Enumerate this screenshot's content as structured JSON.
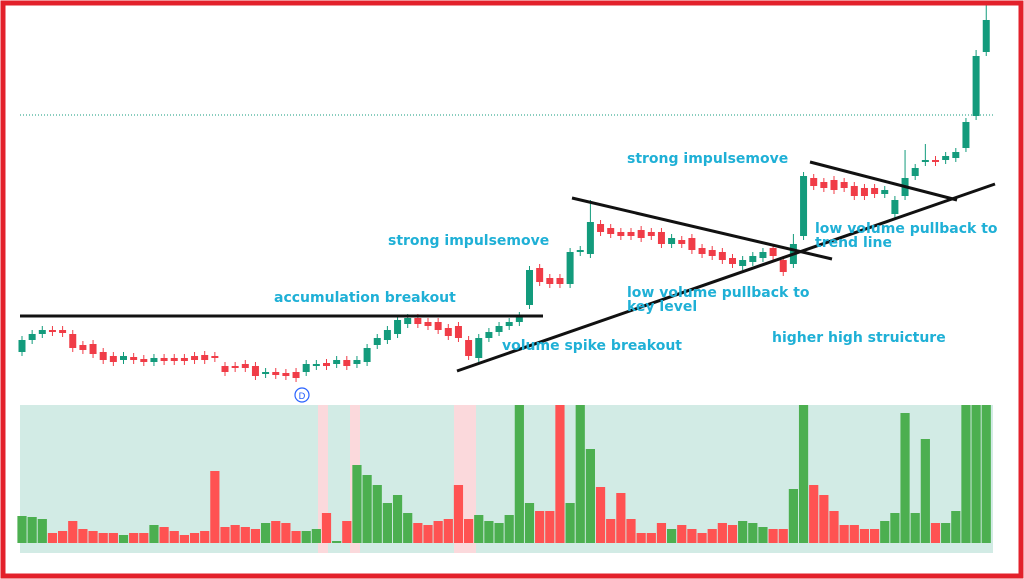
{
  "chart_data": {
    "type": "candlestick",
    "open": [
      48,
      60,
      66,
      70,
      70,
      66,
      55,
      56,
      48,
      44,
      40,
      43,
      41,
      38,
      42,
      42,
      42,
      44,
      45,
      44,
      34,
      34,
      36,
      34,
      26,
      28,
      27,
      28,
      28,
      34,
      37,
      36,
      40,
      36,
      38,
      55,
      60,
      66,
      76,
      82,
      78,
      78,
      72,
      74,
      60,
      42,
      62,
      68,
      74,
      78,
      95,
      132,
      122,
      122,
      116,
      148,
      146,
      176,
      172,
      168,
      168,
      170,
      168,
      168,
      156,
      160,
      162,
      152,
      150,
      148,
      142,
      134,
      138,
      142,
      152,
      140,
      136,
      164,
      222,
      218,
      220,
      218,
      214,
      212,
      212,
      206,
      186,
      204,
      224,
      238,
      240,
      240,
      242,
      252,
      284,
      348
    ],
    "high": [
      64,
      70,
      74,
      74,
      74,
      70,
      59,
      60,
      52,
      48,
      48,
      47,
      45,
      46,
      46,
      46,
      46,
      48,
      49,
      48,
      38,
      38,
      40,
      38,
      32,
      32,
      31,
      32,
      40,
      40,
      41,
      44,
      44,
      44,
      56,
      66,
      74,
      84,
      86,
      86,
      82,
      82,
      76,
      78,
      64,
      66,
      72,
      78,
      82,
      88,
      134,
      136,
      126,
      126,
      152,
      154,
      200,
      180,
      176,
      172,
      172,
      174,
      172,
      172,
      166,
      164,
      166,
      156,
      154,
      152,
      146,
      144,
      148,
      152,
      156,
      144,
      166,
      228,
      226,
      222,
      224,
      222,
      218,
      216,
      216,
      214,
      204,
      250,
      236,
      256,
      244,
      248,
      252,
      282,
      350,
      398
    ],
    "low": [
      44,
      56,
      62,
      64,
      63,
      48,
      46,
      42,
      36,
      34,
      36,
      36,
      34,
      34,
      35,
      35,
      35,
      36,
      36,
      38,
      24,
      28,
      28,
      20,
      22,
      21,
      20,
      18,
      24,
      30,
      30,
      32,
      30,
      32,
      34,
      51,
      56,
      62,
      72,
      72,
      70,
      66,
      60,
      58,
      40,
      38,
      58,
      64,
      70,
      74,
      91,
      114,
      112,
      112,
      112,
      144,
      142,
      164,
      162,
      160,
      160,
      158,
      160,
      152,
      152,
      152,
      146,
      142,
      140,
      136,
      132,
      130,
      134,
      138,
      140,
      124,
      132,
      160,
      210,
      208,
      206,
      208,
      200,
      200,
      202,
      202,
      182,
      200,
      220,
      234,
      234,
      236,
      238,
      248,
      280,
      344
    ],
    "close": [
      60,
      66,
      70,
      68,
      67,
      52,
      50,
      46,
      40,
      38,
      44,
      40,
      38,
      42,
      39,
      39,
      39,
      40,
      40,
      42,
      28,
      32,
      32,
      24,
      28,
      25,
      24,
      22,
      36,
      36,
      34,
      40,
      34,
      40,
      52,
      62,
      70,
      80,
      82,
      76,
      74,
      70,
      64,
      62,
      44,
      62,
      68,
      74,
      78,
      84,
      130,
      118,
      116,
      116,
      148,
      150,
      178,
      168,
      166,
      164,
      164,
      162,
      164,
      156,
      162,
      156,
      150,
      146,
      144,
      140,
      136,
      140,
      144,
      148,
      144,
      128,
      156,
      224,
      214,
      212,
      210,
      212,
      204,
      204,
      206,
      210,
      200,
      222,
      232,
      240,
      238,
      244,
      248,
      278,
      344,
      380
    ],
    "volume": [
      27,
      26,
      24,
      10,
      12,
      22,
      14,
      12,
      10,
      10,
      8,
      10,
      10,
      18,
      16,
      12,
      8,
      10,
      12,
      72,
      16,
      18,
      16,
      14,
      20,
      22,
      20,
      12,
      12,
      14,
      30,
      2,
      22,
      78,
      68,
      58,
      40,
      48,
      30,
      20,
      18,
      22,
      24,
      58,
      24,
      28,
      22,
      20,
      28,
      138,
      40,
      32,
      32,
      138,
      40,
      138,
      94,
      56,
      24,
      50,
      24,
      10,
      10,
      20,
      14,
      18,
      14,
      10,
      14,
      20,
      18,
      22,
      20,
      16,
      14,
      14,
      54,
      138,
      58,
      48,
      32,
      18,
      18,
      14,
      14,
      22,
      30,
      130,
      30,
      104,
      20,
      20,
      32,
      138,
      138,
      138
    ],
    "price_line": 285,
    "ylim": [
      0,
      390
    ],
    "vlim": [
      0,
      138
    ],
    "up_color": "#139b7c",
    "down_color": "#f03c47",
    "vol_up_color": "#4caf50",
    "vol_down_color": "#ff5252",
    "marker": "D",
    "annotations": [
      {
        "lines": [
          "accumulation breakout"
        ]
      },
      {
        "lines": [
          "strong impulsemove"
        ]
      },
      {
        "lines": [
          "volume spike breakout"
        ]
      },
      {
        "lines": [
          "strong impulsemove"
        ]
      },
      {
        "lines": [
          "low volume pullback to",
          "key level"
        ]
      },
      {
        "lines": [
          "low volume pullback to",
          "trend line"
        ]
      },
      {
        "lines": [
          "higher high struicture"
        ]
      }
    ]
  }
}
